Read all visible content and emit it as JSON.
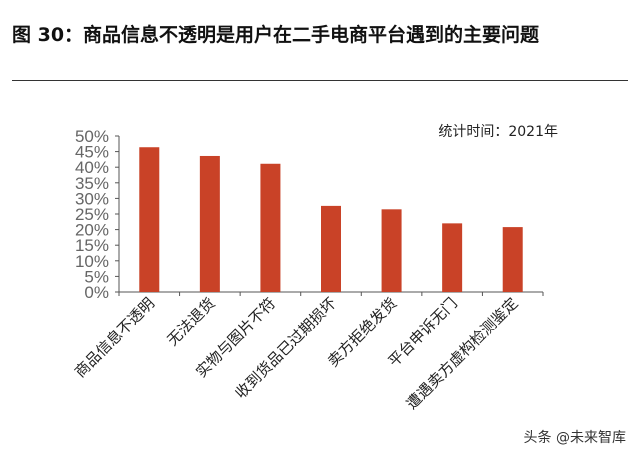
{
  "title": "图 30：商品信息不透明是用户在二手电商平台遇到的主要问题",
  "watermark": "头条 @未来智库",
  "chart_data": {
    "type": "bar",
    "title": "图 30：商品信息不透明是用户在二手电商平台遇到的主要问题",
    "annotation": "统计时间：2021年",
    "categories": [
      "商品信息不透明",
      "无法退货",
      "实物与图片不符",
      "收到货品已过期损坏",
      "卖方拒绝发货",
      "平台申诉无门",
      "遭遇卖方虚构检测鉴定"
    ],
    "values": [
      46.4,
      43.6,
      41.1,
      27.6,
      26.5,
      22.0,
      20.8
    ],
    "yticks": [
      "0%",
      "5%",
      "10%",
      "15%",
      "20%",
      "25%",
      "30%",
      "35%",
      "40%",
      "45%",
      "50%"
    ],
    "ylim": [
      0,
      50
    ],
    "xlabel": "",
    "ylabel": "",
    "bar_color": "#c94227",
    "grid": false
  }
}
